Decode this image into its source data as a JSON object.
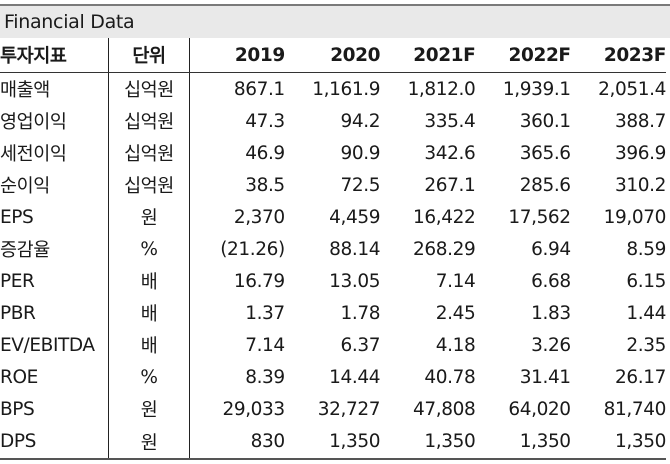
{
  "title": "Financial Data",
  "columns": {
    "label": "투자지표",
    "unit": "단위",
    "years": [
      "2019",
      "2020",
      "2021F",
      "2022F",
      "2023F"
    ]
  },
  "rows": [
    {
      "label": "매출액",
      "unit": "십억원",
      "values": [
        "867.1",
        "1,161.9",
        "1,812.0",
        "1,939.1",
        "2,051.4"
      ]
    },
    {
      "label": "영업이익",
      "unit": "십억원",
      "values": [
        "47.3",
        "94.2",
        "335.4",
        "360.1",
        "388.7"
      ]
    },
    {
      "label": "세전이익",
      "unit": "십억원",
      "values": [
        "46.9",
        "90.9",
        "342.6",
        "365.6",
        "396.9"
      ]
    },
    {
      "label": "순이익",
      "unit": "십억원",
      "values": [
        "38.5",
        "72.5",
        "267.1",
        "285.6",
        "310.2"
      ]
    },
    {
      "label": "EPS",
      "unit": "원",
      "values": [
        "2,370",
        "4,459",
        "16,422",
        "17,562",
        "19,070"
      ]
    },
    {
      "label": "증감율",
      "unit": "%",
      "values": [
        "(21.26)",
        "88.14",
        "268.29",
        "6.94",
        "8.59"
      ]
    },
    {
      "label": "PER",
      "unit": "배",
      "values": [
        "16.79",
        "13.05",
        "7.14",
        "6.68",
        "6.15"
      ]
    },
    {
      "label": "PBR",
      "unit": "배",
      "values": [
        "1.37",
        "1.78",
        "2.45",
        "1.83",
        "1.44"
      ]
    },
    {
      "label": "EV/EBITDA",
      "unit": "배",
      "values": [
        "7.14",
        "6.37",
        "4.18",
        "3.26",
        "2.35"
      ]
    },
    {
      "label": "ROE",
      "unit": "%",
      "values": [
        "8.39",
        "14.44",
        "40.78",
        "31.41",
        "26.17"
      ]
    },
    {
      "label": "BPS",
      "unit": "원",
      "values": [
        "29,033",
        "32,727",
        "47,808",
        "64,020",
        "81,740"
      ]
    },
    {
      "label": "DPS",
      "unit": "원",
      "values": [
        "830",
        "1,350",
        "1,350",
        "1,350",
        "1,350"
      ]
    }
  ]
}
